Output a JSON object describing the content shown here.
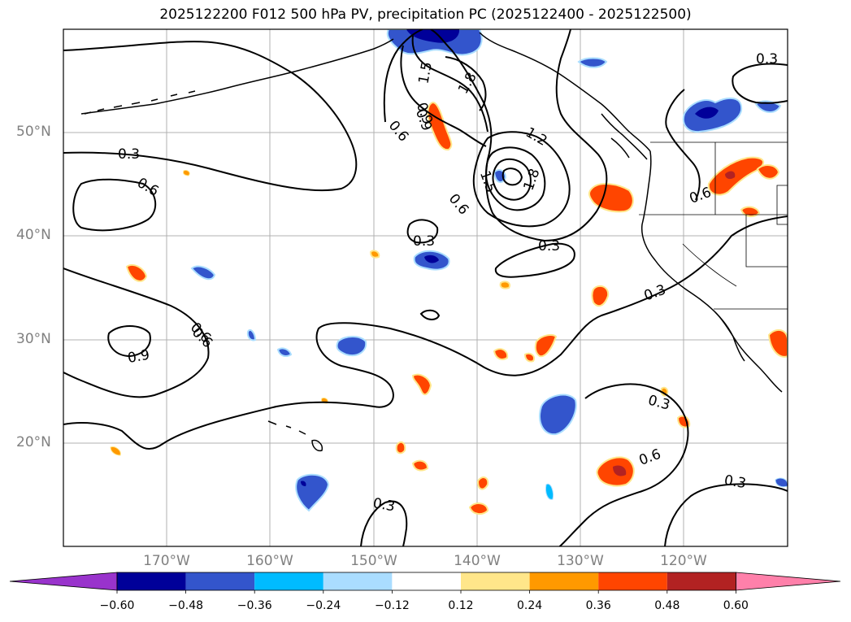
{
  "title": "2025122200 F012 500 hPa PV, precipitation PC (2025122400 - 2025122500)",
  "lat_labels": [
    "50°N",
    "40°N",
    "30°N",
    "20°N"
  ],
  "lon_labels": [
    "170°W",
    "160°W",
    "150°W",
    "140°W",
    "130°W",
    "120°W"
  ],
  "contour_labels": [
    "0.3",
    "0.6",
    "0.9",
    "1.5",
    "1.8",
    "1.2",
    "0.9",
    "0.6",
    "1.8",
    "1.5",
    "0.6",
    "0.3",
    "0.3",
    "0.3",
    "0.6",
    "0.9",
    "0.6",
    "0.3",
    "0.6",
    "0.3",
    "0.3",
    "0.6",
    "0.3"
  ],
  "colorbar": {
    "ticks": [
      "−0.60",
      "−0.48",
      "−0.36",
      "−0.24",
      "−0.12",
      "0.12",
      "0.24",
      "0.36",
      "0.48",
      "0.60"
    ],
    "colors": [
      "#9933cc",
      "#000099",
      "#3355cc",
      "#00bbff",
      "#aaddff",
      "#ffffff",
      "#ffe68a",
      "#ff9900",
      "#ff4500",
      "#b22222",
      "#ff80aa"
    ]
  },
  "precip_colors": {
    "strong_neg": "#000099",
    "neg": "#3355cc",
    "weak_neg": "#00bbff",
    "weakest_neg": "#aaddff",
    "weak_pos": "#ffe68a",
    "pos": "#ff9900",
    "strong_pos": "#ff4500",
    "stronger_pos": "#b22222"
  }
}
